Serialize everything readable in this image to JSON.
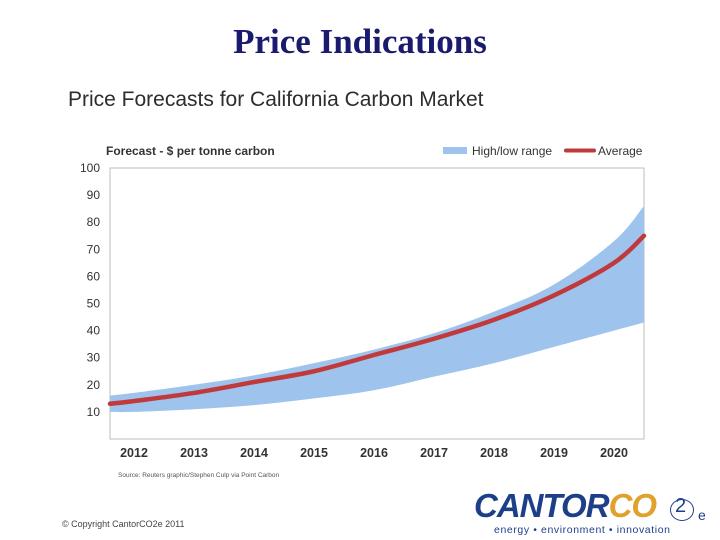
{
  "slide": {
    "title": "Price Indications",
    "source_note": "Source: Reuters graphic/Stephen Culp via Point Carbon",
    "copyright": "© Copyright CantorCO2e 2011"
  },
  "logo": {
    "name_navy": "CANTOR",
    "name_gold": "CO",
    "subscript": "2",
    "suffix": "e",
    "tagline": "energy • environment • innovation",
    "colors": {
      "navy": "#1d3f8a",
      "gold": "#e0a22c"
    }
  },
  "chart_data": {
    "type": "area",
    "title": "Price Forecasts for California Carbon Market",
    "subtitle": "Forecast - $ per tonne carbon",
    "xlabel": "",
    "ylabel": "",
    "x": [
      2011.6,
      2012,
      2013,
      2014,
      2015,
      2016,
      2017,
      2018,
      2019,
      2020,
      2020.5
    ],
    "x_ticks": [
      "2012",
      "2013",
      "2014",
      "2015",
      "2016",
      "2017",
      "2018",
      "2019",
      "2020"
    ],
    "y_ticks": [
      "10",
      "20",
      "30",
      "40",
      "50",
      "60",
      "70",
      "80",
      "90",
      "100"
    ],
    "xlim": [
      2011.6,
      2020.5
    ],
    "ylim": [
      0,
      100
    ],
    "grid": false,
    "legend_position": "top-right",
    "series": [
      {
        "name": "High/low range",
        "kind": "band",
        "color": "#9ec3ec",
        "low": [
          10,
          10,
          11,
          12.5,
          15,
          18,
          23,
          28,
          34,
          40,
          43
        ],
        "high": [
          16,
          17,
          20,
          23.5,
          28,
          33,
          39,
          47,
          57,
          73,
          86
        ]
      },
      {
        "name": "Average",
        "kind": "line",
        "color": "#c0393b",
        "values": [
          13,
          14,
          17,
          21,
          25,
          31,
          37,
          44,
          53,
          65,
          75
        ]
      }
    ]
  }
}
